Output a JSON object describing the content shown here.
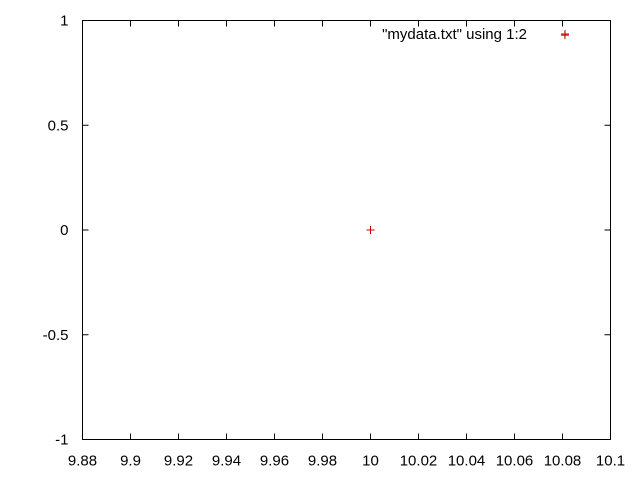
{
  "chart_data": {
    "type": "scatter",
    "title": "",
    "xlabel": "",
    "ylabel": "",
    "xlim": [
      9.88,
      10.1
    ],
    "ylim": [
      -1,
      1
    ],
    "xticks": [
      9.88,
      9.9,
      9.92,
      9.94,
      9.96,
      9.98,
      10,
      10.02,
      10.04,
      10.06,
      10.08,
      10.1
    ],
    "xtick_labels": [
      "9.88",
      "9.9",
      "9.92",
      "9.94",
      "9.96",
      "9.98",
      "10",
      "10.02",
      "10.04",
      "10.06",
      "10.08",
      "10.1"
    ],
    "yticks": [
      -1,
      -0.5,
      0,
      0.5,
      1
    ],
    "ytick_labels": [
      "-1",
      "-0.5",
      "0",
      "0.5",
      "1"
    ],
    "grid": false,
    "legend_position": "top-right",
    "marker": "+",
    "series": [
      {
        "name": "\"mydata.txt\" using 1:2",
        "color": "#cc0000",
        "points": [
          {
            "x": 10.0,
            "y": 0.0
          },
          {
            "x": 10.081,
            "y": 0.93
          }
        ]
      }
    ]
  }
}
